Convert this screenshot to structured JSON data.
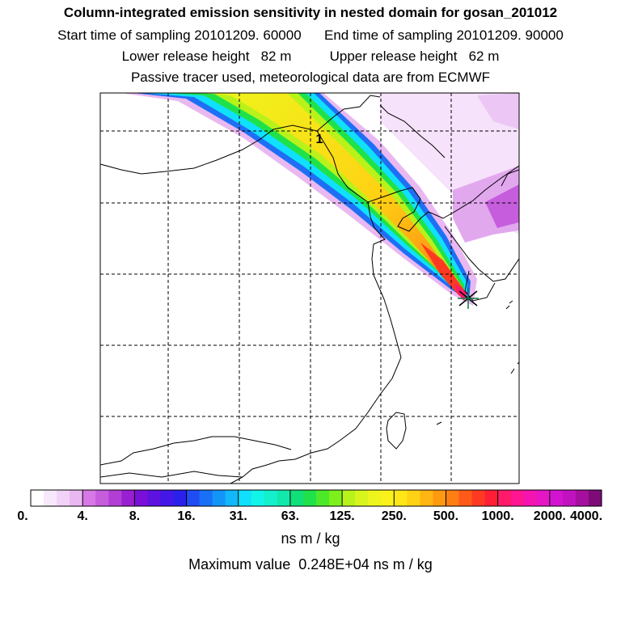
{
  "header": {
    "title": "Column-integrated emission sensitivity in nested domain for gosan_201012",
    "sampling": "Start time of sampling 20101209. 60000      End time of sampling 20101209. 90000",
    "release": "Lower release height   82 m          Upper release height   62 m",
    "tracer": "Passive tracer used, meteorological data are from ECMWF"
  },
  "map": {
    "station_marker_label": "1",
    "receptor_symbol": "star"
  },
  "colorbar": {
    "tick_labels": [
      "0.",
      "4.",
      "8.",
      "16.",
      "31.",
      "63.",
      "125.",
      "250.",
      "500.",
      "1000.",
      "2000.",
      "4000."
    ],
    "colors": [
      "#ffffff",
      "#f8e8fb",
      "#f2d2f6",
      "#e9b8f1",
      "#d878e6",
      "#c65ddd",
      "#b23ed6",
      "#9a1fd0",
      "#7a10d8",
      "#5d12e0",
      "#4317e6",
      "#2a20ec",
      "#1f4cf3",
      "#1870f6",
      "#1395f8",
      "#12b8fa",
      "#10e0fb",
      "#12f3ea",
      "#14efcc",
      "#12e8ab",
      "#10df7a",
      "#1fe24a",
      "#4ee82a",
      "#7df01c",
      "#b8f21a",
      "#d8f41d",
      "#eef51c",
      "#fbf21c",
      "#ffe617",
      "#ffd214",
      "#ffb512",
      "#ff9a10",
      "#ff7e14",
      "#ff5a19",
      "#ff3a22",
      "#ff1f35",
      "#ff1a6a",
      "#ff1690",
      "#f414b2",
      "#e615c6",
      "#d214d0",
      "#c013bf",
      "#a4109d",
      "#7d0c78"
    ],
    "unit": "ns m / kg",
    "max_value_text": "Maximum value  0.248E+04 ns m / kg"
  }
}
